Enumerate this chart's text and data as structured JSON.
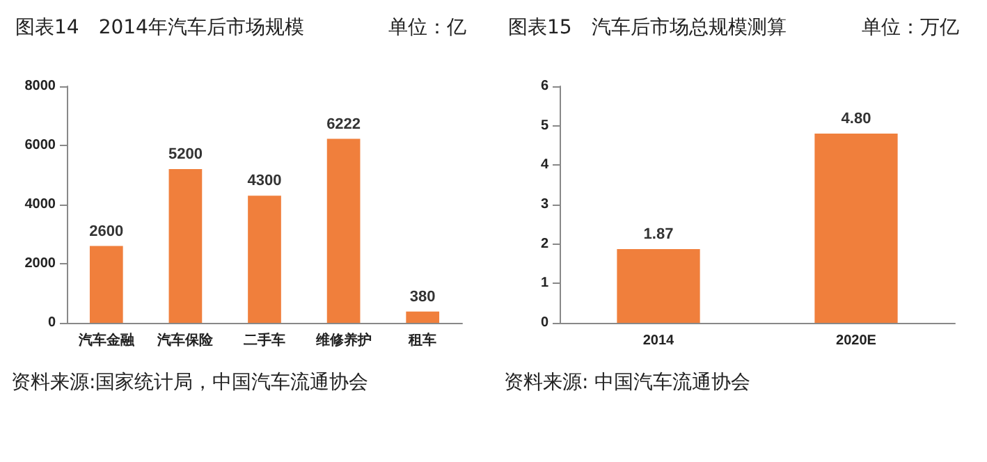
{
  "chart_data": [
    {
      "type": "bar",
      "title": "图表14　2014年汽车后市场规模",
      "subtitle": "单位：亿",
      "categories": [
        "汽车金融",
        "汽车保险",
        "二手车",
        "维修养护",
        "租车"
      ],
      "values": [
        2600,
        5200,
        4300,
        6222,
        380
      ],
      "color": "#f07f3c",
      "ylim": [
        0,
        8000
      ],
      "yticks": [
        0,
        2000,
        4000,
        6000,
        8000
      ],
      "grid": false,
      "data_labels": true,
      "annotations": [
        "资料来源:国家统计局，中国汽车流通协会"
      ]
    },
    {
      "type": "bar",
      "title": "图表15　汽车后市场总规模测算",
      "subtitle": "单位：万亿",
      "categories": [
        "2014",
        "2020E"
      ],
      "values": [
        1.87,
        4.8
      ],
      "value_labels": [
        "1.87",
        "4.80"
      ],
      "color": "#f07f3c",
      "ylim": [
        0,
        6
      ],
      "yticks": [
        0,
        1,
        2,
        3,
        4,
        5,
        6
      ],
      "grid": false,
      "annotations": [
        "资料来源: 中国汽车流通协会"
      ]
    }
  ]
}
